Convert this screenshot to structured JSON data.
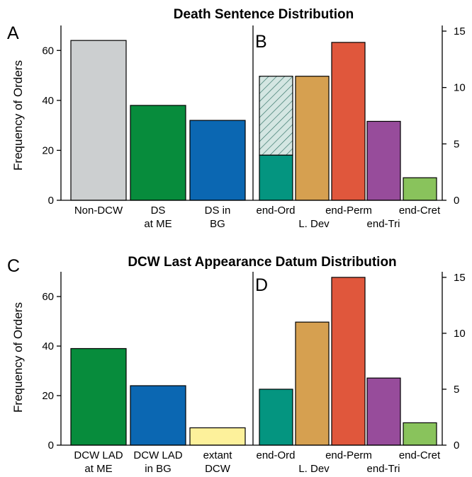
{
  "chart_data": [
    {
      "type": "bar",
      "panel": "A",
      "title": "Death Sentence Distribution",
      "ylabel": "Frequency of Orders",
      "ylim": [
        0,
        70
      ],
      "yticks": [
        "0",
        "20",
        "40",
        "60"
      ],
      "categories": [
        [
          "Non-DCW"
        ],
        [
          "DS",
          "at ME"
        ],
        [
          "DS in",
          "BG"
        ]
      ],
      "values": [
        64,
        38,
        32
      ],
      "colors": [
        "#cccfd0",
        "#078c3c",
        "#0b67b2"
      ]
    },
    {
      "type": "bar",
      "panel": "B",
      "ylim": [
        0,
        15.5
      ],
      "yticks": [
        "0",
        "5",
        "10",
        "15"
      ],
      "categories": [
        "end-Ord",
        "L. Dev",
        "end-Perm",
        "end-Tri",
        "end-Cret"
      ],
      "values": [
        4,
        11,
        14,
        7,
        2
      ],
      "hatched_extra": [
        7,
        0,
        0,
        0,
        0
      ],
      "colors": [
        "#049580",
        "#d6a050",
        "#e0573c",
        "#974c9b",
        "#89c35c"
      ],
      "hatch_color": "#d4e6e2"
    },
    {
      "type": "bar",
      "panel": "C",
      "title": "DCW Last Appearance Datum Distribution",
      "ylabel": "Frequency of Orders",
      "ylim": [
        0,
        70
      ],
      "yticks": [
        "0",
        "20",
        "40",
        "60"
      ],
      "categories": [
        [
          "DCW LAD",
          "at ME"
        ],
        [
          "DCW LAD",
          "in BG"
        ],
        [
          "extant",
          "DCW"
        ]
      ],
      "values": [
        39,
        24,
        7
      ],
      "colors": [
        "#078c3c",
        "#0b67b2",
        "#fdf19b"
      ]
    },
    {
      "type": "bar",
      "panel": "D",
      "ylim": [
        0,
        15.5
      ],
      "yticks": [
        "0",
        "5",
        "10",
        "15"
      ],
      "categories": [
        "end-Ord",
        "L. Dev",
        "end-Perm",
        "end-Tri",
        "end-Cret"
      ],
      "values": [
        5,
        11,
        15,
        6,
        2
      ],
      "colors": [
        "#049580",
        "#d6a050",
        "#e0573c",
        "#974c9b",
        "#89c35c"
      ]
    }
  ]
}
